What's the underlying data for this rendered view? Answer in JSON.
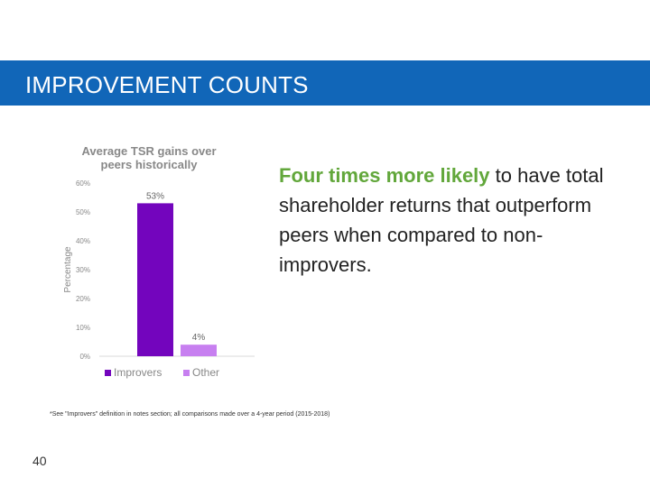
{
  "header": {
    "title": "IMPROVEMENT COUNTS",
    "bar_color": "#1166b8"
  },
  "headline": {
    "accent_text": "Four times more likely",
    "body_text": " to have total shareholder returns that outperform peers when compared to non-improvers.",
    "accent_color": "#62a73b"
  },
  "footnote": "*See \"Improvers\" definition in notes section; all comparisons made over a 4-year period (2015-2018)",
  "page_number": "40",
  "chart_data": {
    "type": "bar",
    "title": "Average TSR gains over peers historically",
    "ylabel": "Percentage",
    "xlabel": "",
    "categories": [
      "Improvers",
      "Other"
    ],
    "values": [
      53,
      4
    ],
    "value_labels": [
      "53%",
      "4%"
    ],
    "ylim": [
      0,
      60
    ],
    "yticks": [
      0,
      10,
      20,
      30,
      40,
      50,
      60
    ],
    "ytick_labels": [
      "0%",
      "10%",
      "20%",
      "30%",
      "40%",
      "50%",
      "60%"
    ],
    "colors": [
      "#7305bd",
      "#c77ff0"
    ],
    "legend": [
      "Improvers",
      "Other"
    ],
    "legend_position": "bottom",
    "grid": false
  }
}
